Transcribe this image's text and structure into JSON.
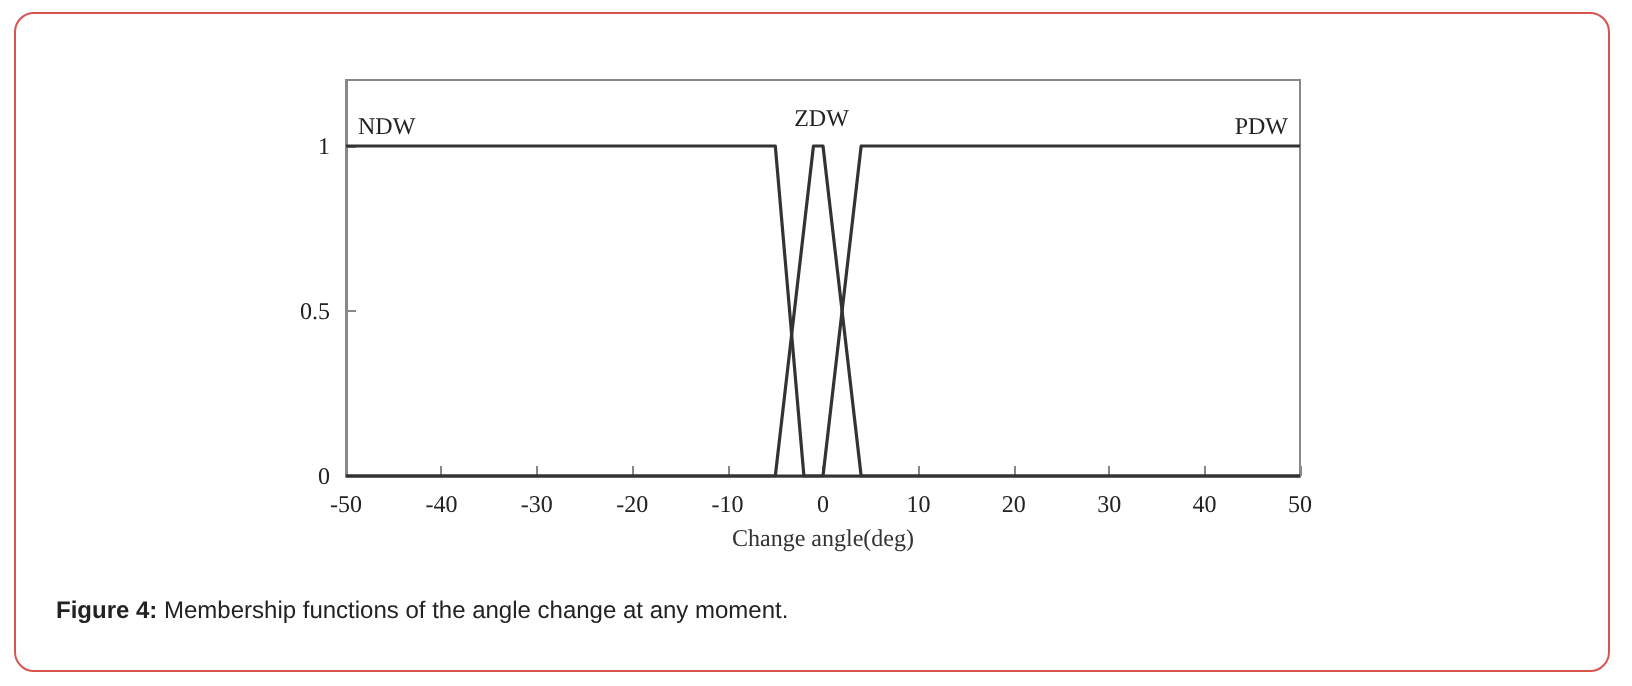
{
  "chart_data": {
    "type": "line",
    "xlabel": "Change angle(deg)",
    "annotations": [
      "Figure 4: Membership functions of the angle change at any moment."
    ],
    "series": [
      {
        "name": "NDW",
        "color": "#333333",
        "x": [
          -50,
          -5,
          -2,
          50
        ],
        "values": [
          1,
          1,
          0,
          0
        ]
      },
      {
        "name": "ZDW",
        "color": "#333333",
        "x": [
          -50,
          -5,
          -1,
          0,
          4,
          50
        ],
        "values": [
          0,
          0,
          1,
          1,
          0,
          0
        ]
      },
      {
        "name": "PDW",
        "color": "#333333",
        "x": [
          -50,
          0,
          4,
          50
        ],
        "values": [
          0,
          0,
          1,
          1
        ]
      }
    ],
    "xlim": [
      -50,
      50
    ],
    "xticks": [
      -50,
      -40,
      -30,
      -20,
      -10,
      0,
      10,
      20,
      30,
      40,
      50
    ],
    "ylim": [
      0,
      1.2
    ],
    "yticks": [
      0,
      0.5,
      1
    ],
    "grid": false,
    "legend": false,
    "marker": "none",
    "line_style": "solid"
  }
}
